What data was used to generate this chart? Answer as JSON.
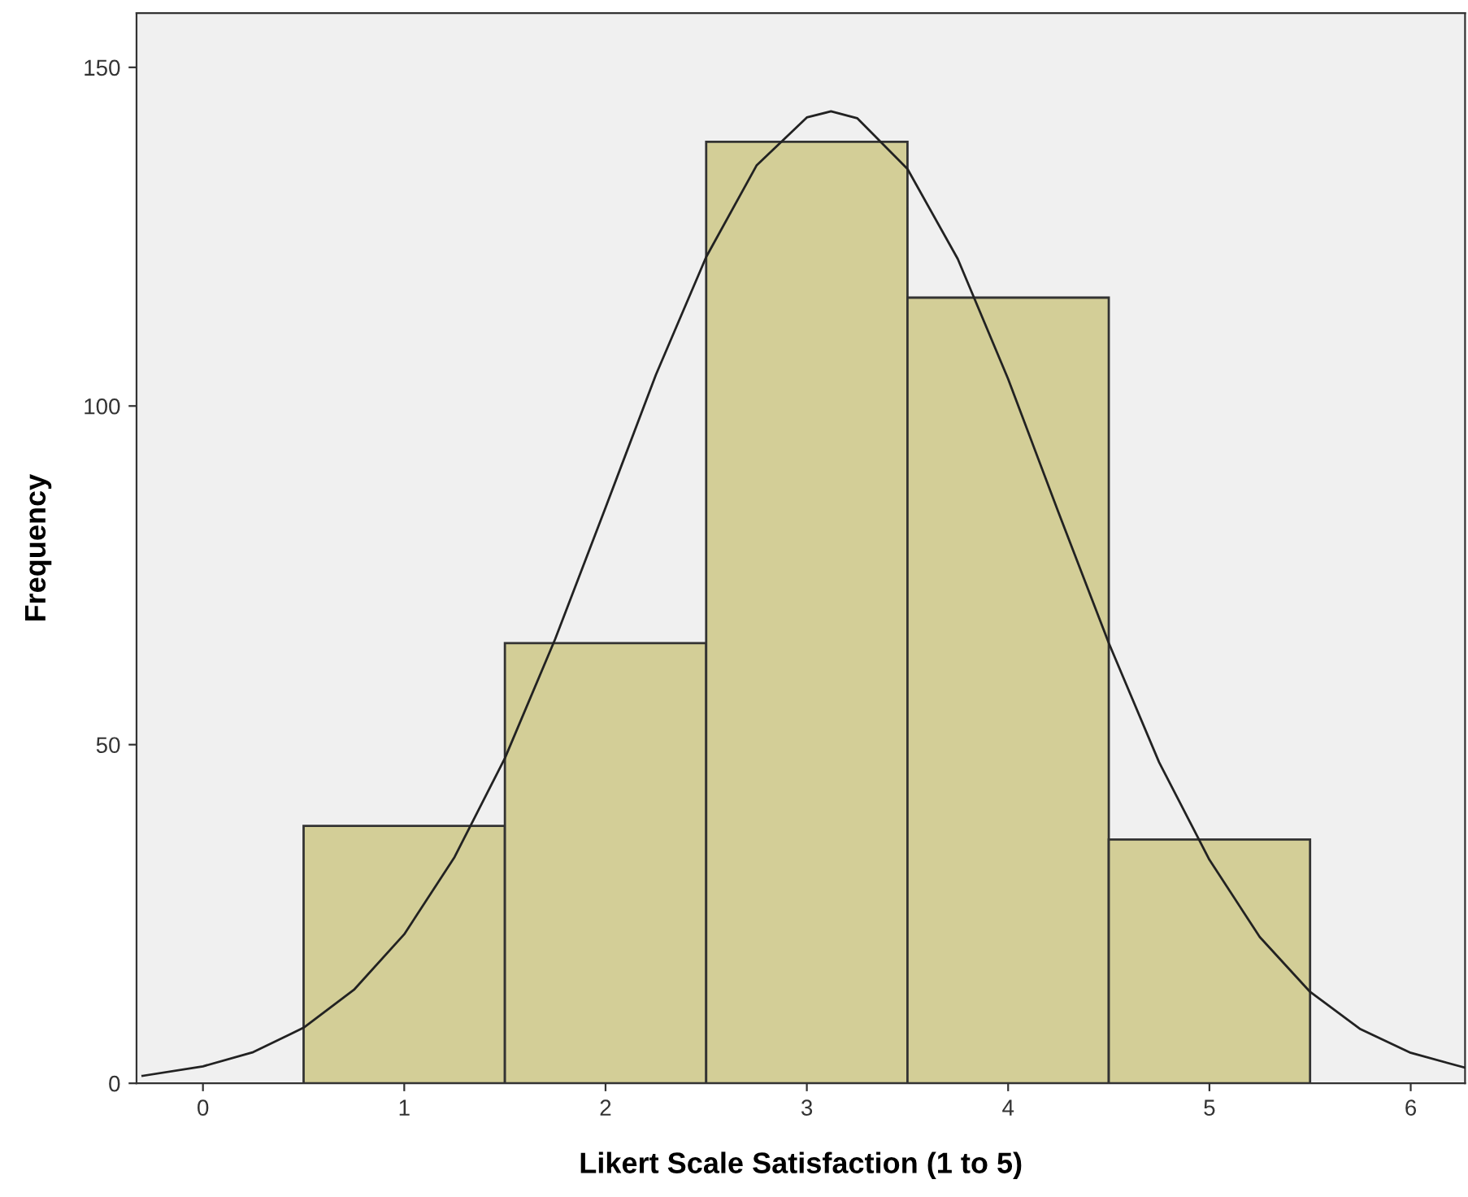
{
  "chart_data": {
    "type": "histogram",
    "xlabel": "Likert Scale Satisfaction (1 to 5)",
    "ylabel": "Frequency",
    "bins": [
      0.5,
      1.5,
      2.5,
      3.5,
      4.5,
      5.5
    ],
    "values": [
      38,
      65,
      139,
      116,
      36
    ],
    "color": "#d3ce97",
    "series": [
      {
        "type": "line",
        "color": "#222222",
        "x": [
          -0.3,
          0,
          0.25,
          0.5,
          0.75,
          1,
          1.25,
          1.5,
          1.75,
          2,
          2.25,
          2.5,
          2.75,
          3,
          3.12,
          3.25,
          3.5,
          3.75,
          4,
          4.25,
          4.5,
          4.75,
          5,
          5.25,
          5.5,
          5.75,
          6,
          6.27
        ],
        "values": [
          1.1,
          2.5,
          4.6,
          8.2,
          13.8,
          22,
          33.4,
          48,
          65.6,
          85,
          104.6,
          122,
          135.5,
          142.6,
          143.5,
          142.5,
          135,
          121.7,
          104,
          84.3,
          65,
          47.4,
          33,
          21.6,
          13.5,
          8,
          4.5,
          2.3
        ]
      }
    ],
    "xlim": [
      -0.33,
      6.27
    ],
    "xticks": [
      0,
      1,
      2,
      3,
      4,
      5,
      6
    ],
    "ylim": [
      0,
      158
    ],
    "yticks": [
      0,
      50,
      100,
      150
    ],
    "grid": false,
    "legend": false
  }
}
